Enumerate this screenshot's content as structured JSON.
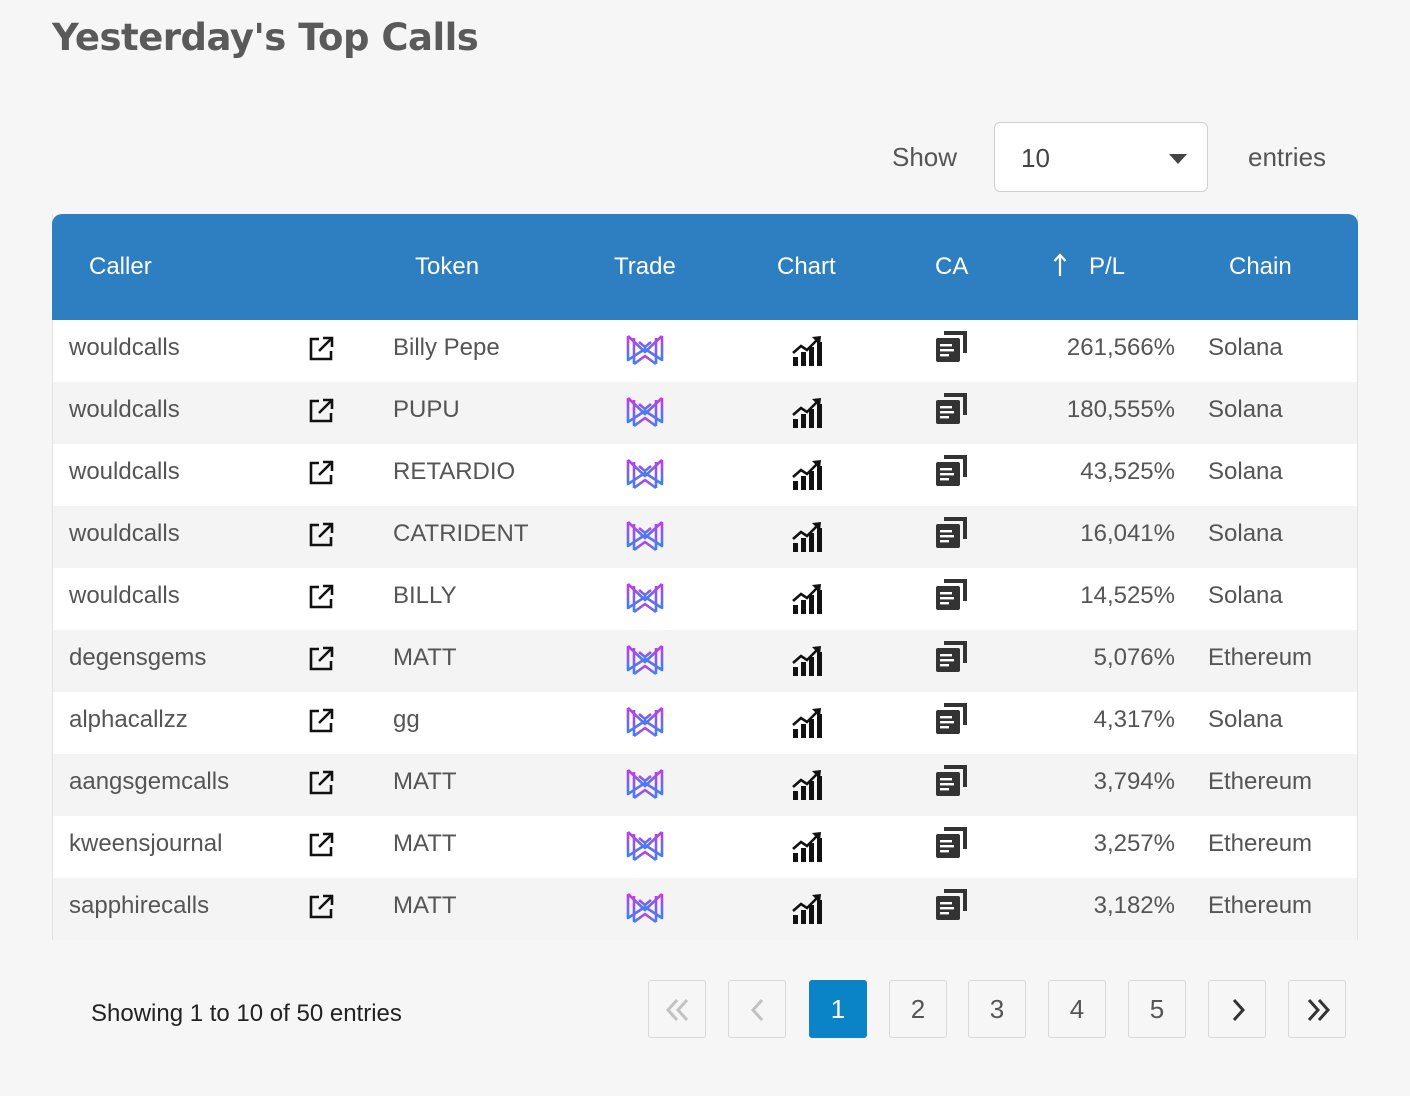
{
  "page": {
    "title": "Yesterday's Top Calls"
  },
  "length_control": {
    "show_label": "Show",
    "selected": "10",
    "entries_label": "entries"
  },
  "table": {
    "columns": [
      "Caller",
      "Token",
      "Trade",
      "Chart",
      "CA",
      "P/L",
      "Chain"
    ],
    "sorted_column": "P/L",
    "rows": [
      {
        "caller": "wouldcalls",
        "token": "Billy Pepe",
        "pl": "261,566%",
        "chain": "Solana"
      },
      {
        "caller": "wouldcalls",
        "token": "PUPU",
        "pl": "180,555%",
        "chain": "Solana"
      },
      {
        "caller": "wouldcalls",
        "token": "RETARDIO",
        "pl": "43,525%",
        "chain": "Solana"
      },
      {
        "caller": "wouldcalls",
        "token": "CATRIDENT",
        "pl": "16,041%",
        "chain": "Solana"
      },
      {
        "caller": "wouldcalls",
        "token": "BILLY",
        "pl": "14,525%",
        "chain": "Solana"
      },
      {
        "caller": "degensgems",
        "token": "MATT",
        "pl": "5,076%",
        "chain": "Ethereum"
      },
      {
        "caller": "alphacallzz",
        "token": "gg",
        "pl": "4,317%",
        "chain": "Solana"
      },
      {
        "caller": "aangsgemcalls",
        "token": "MATT",
        "pl": "3,794%",
        "chain": "Ethereum"
      },
      {
        "caller": "kweensjournal",
        "token": "MATT",
        "pl": "3,257%",
        "chain": "Ethereum"
      },
      {
        "caller": "sapphirecalls",
        "token": "MATT",
        "pl": "3,182%",
        "chain": "Ethereum"
      }
    ]
  },
  "footer": {
    "info": "Showing 1 to 10 of 50 entries",
    "pages": [
      "1",
      "2",
      "3",
      "4",
      "5"
    ],
    "current_page": "1"
  },
  "icons": {
    "caller_link": "external-link-icon",
    "trade": "trade-logo-icon",
    "chart": "chart-icon",
    "ca": "copy-icon",
    "sort": "sort-ascending-arrow-icon"
  },
  "colors": {
    "header_bg": "#2e7fc1",
    "active_page": "#0a84c7",
    "trade_logo_gradient_start": "#c43be8",
    "trade_logo_gradient_end": "#3b82f6"
  }
}
